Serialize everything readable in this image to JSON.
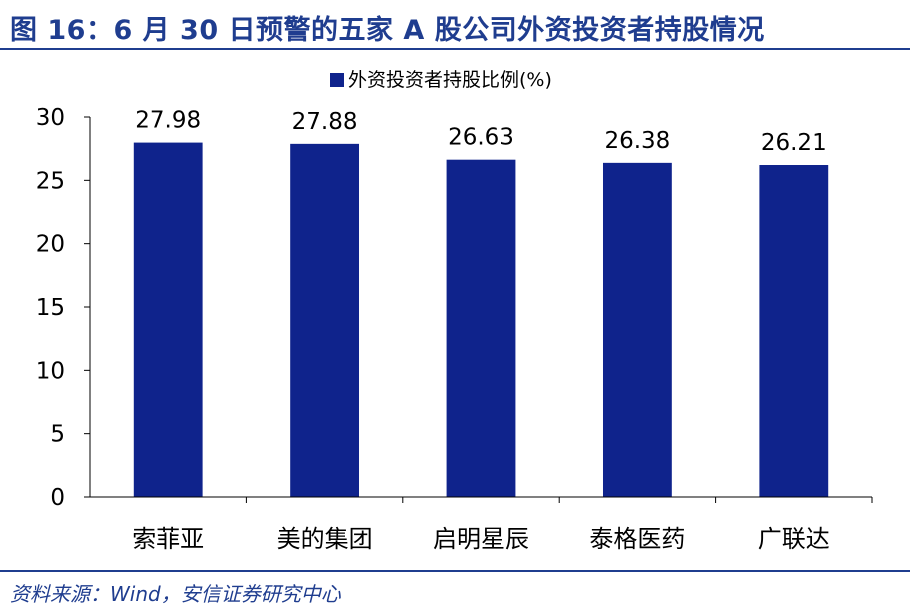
{
  "figure": {
    "title": "图 16：6 月 30 日预警的五家 A 股公司外资投资者持股情况",
    "source": "资料来源：Wind，安信证券研究中心"
  },
  "chart_data": {
    "type": "bar",
    "categories": [
      "索菲亚",
      "美的集团",
      "启明星辰",
      "泰格医药",
      "广联达"
    ],
    "series": [
      {
        "name": "外资投资者持股比例(%)",
        "values": [
          27.98,
          27.88,
          26.63,
          26.38,
          26.21
        ],
        "color": "#0f238c"
      }
    ],
    "data_labels": [
      "27.98",
      "27.88",
      "26.63",
      "26.38",
      "26.21"
    ],
    "ylim": [
      0,
      30
    ],
    "yticks": [
      0,
      5,
      10,
      15,
      20,
      25,
      30
    ],
    "xlabel": "",
    "ylabel": "",
    "legend_position": "top-center",
    "grid": false
  }
}
